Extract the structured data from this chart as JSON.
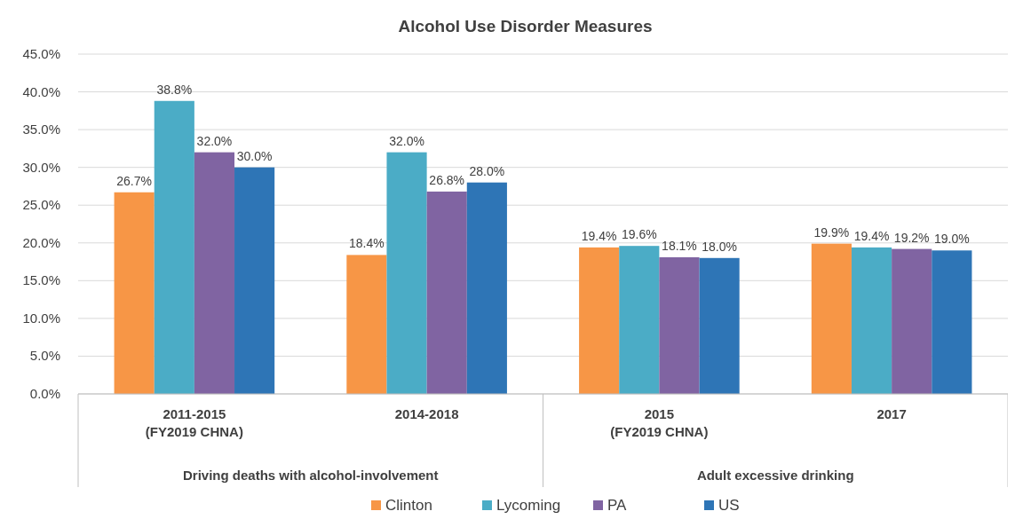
{
  "chart_data": {
    "type": "bar",
    "title": "Alcohol Use Disorder Measures",
    "categories": [
      "2011-2015\n(FY2019 CHNA)",
      "2014-2018",
      "2015\n(FY2019 CHNA)",
      "2017"
    ],
    "annotations": [
      "Driving deaths with alcohol-involvement",
      "Adult excessive drinking"
    ],
    "ylim": [
      0,
      45
    ],
    "yticks": [
      {
        "value": 0,
        "label": "0.0%"
      },
      {
        "value": 5,
        "label": "5.0%"
      },
      {
        "value": 10,
        "label": "10.0%"
      },
      {
        "value": 15,
        "label": "15.0%"
      },
      {
        "value": 20,
        "label": "20.0%"
      },
      {
        "value": 25,
        "label": "25.0%"
      },
      {
        "value": 30,
        "label": "30.0%"
      },
      {
        "value": 35,
        "label": "35.0%"
      },
      {
        "value": 40,
        "label": "40.0%"
      },
      {
        "value": 45,
        "label": "45.0%"
      }
    ],
    "grid": "y",
    "legend": "bottom",
    "series": [
      {
        "name": "Clinton",
        "color": "#f79646",
        "values": [
          26.7,
          18.4,
          19.4,
          19.9
        ],
        "value_labels": [
          "26.7%",
          "18.4%",
          "19.4%",
          "19.9%"
        ]
      },
      {
        "name": "Lycoming",
        "color": "#4bacc6",
        "values": [
          38.8,
          32.0,
          19.6,
          19.4
        ],
        "value_labels": [
          "38.8%",
          "32.0%",
          "19.6%",
          "19.4%"
        ]
      },
      {
        "name": "PA",
        "color": "#8064a2",
        "values": [
          32.0,
          26.8,
          18.1,
          19.2
        ],
        "value_labels": [
          "32.0%",
          "26.8%",
          "18.1%",
          "19.2%"
        ]
      },
      {
        "name": "US",
        "color": "#2e75b6",
        "values": [
          30.0,
          28.0,
          18.0,
          19.0
        ],
        "value_labels": [
          "30.0%",
          "28.0%",
          "18.0%",
          "19.0%"
        ]
      }
    ]
  }
}
